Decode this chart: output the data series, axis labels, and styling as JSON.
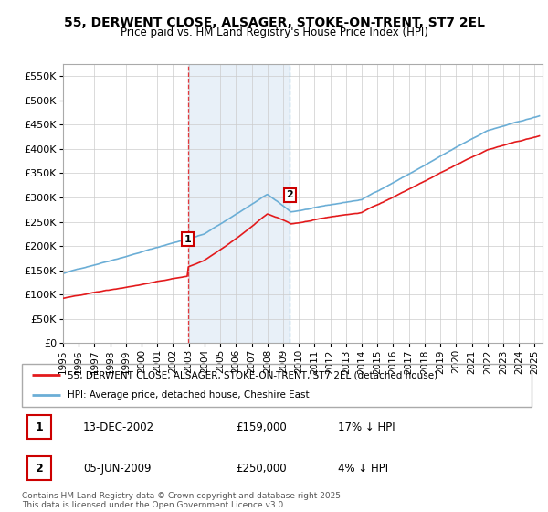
{
  "title_line1": "55, DERWENT CLOSE, ALSAGER, STOKE-ON-TRENT, ST7 2EL",
  "title_line2": "Price paid vs. HM Land Registry's House Price Index (HPI)",
  "ylabel_ticks": [
    "£0",
    "£50K",
    "£100K",
    "£150K",
    "£200K",
    "£250K",
    "£300K",
    "£350K",
    "£400K",
    "£450K",
    "£500K",
    "£550K"
  ],
  "ytick_values": [
    0,
    50000,
    100000,
    150000,
    200000,
    250000,
    300000,
    350000,
    400000,
    450000,
    500000,
    550000
  ],
  "ylim": [
    0,
    575000
  ],
  "xlim_start": 1995.0,
  "xlim_end": 2025.5,
  "hpi_color": "#6baed6",
  "price_color": "#e31a1c",
  "transaction1_x": 2002.95,
  "transaction1_y": 159000,
  "transaction2_x": 2009.43,
  "transaction2_y": 250000,
  "shade_color": "#c6dbef",
  "shade_alpha": 0.4,
  "legend_label1": "55, DERWENT CLOSE, ALSAGER, STOKE-ON-TRENT, ST7 2EL (detached house)",
  "legend_label2": "HPI: Average price, detached house, Cheshire East",
  "annotation1_date": "13-DEC-2002",
  "annotation1_price": "£159,000",
  "annotation1_hpi": "17% ↓ HPI",
  "annotation2_date": "05-JUN-2009",
  "annotation2_price": "£250,000",
  "annotation2_hpi": "4% ↓ HPI",
  "footer": "Contains HM Land Registry data © Crown copyright and database right 2025.\nThis data is licensed under the Open Government Licence v3.0.",
  "xlabel_years": [
    1995,
    1996,
    1997,
    1998,
    1999,
    2000,
    2001,
    2002,
    2003,
    2004,
    2005,
    2006,
    2007,
    2008,
    2009,
    2010,
    2011,
    2012,
    2013,
    2014,
    2015,
    2016,
    2017,
    2018,
    2019,
    2020,
    2021,
    2022,
    2023,
    2024,
    2025
  ]
}
